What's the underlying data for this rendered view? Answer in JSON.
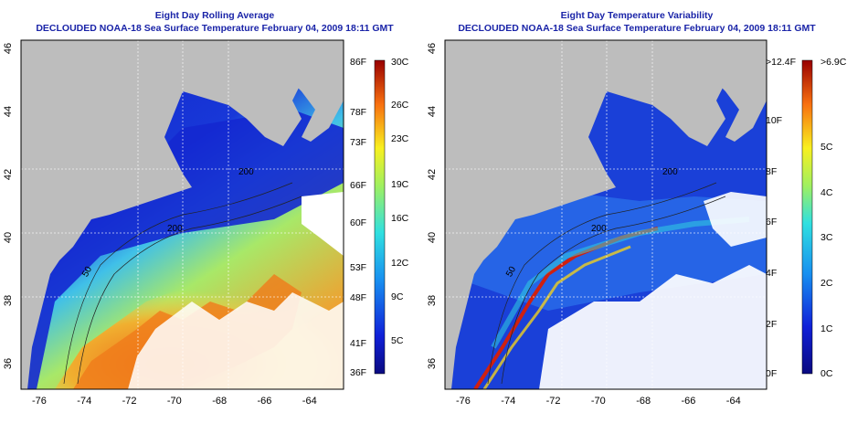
{
  "left": {
    "title": "Eight Day Rolling Average",
    "subtitle": "DECLOUDED NOAA-18 Sea Surface Temperature February 04, 2009 18:11 GMT",
    "lon_ticks": [
      "-76",
      "-74",
      "-72",
      "-70",
      "-68",
      "-66",
      "-64"
    ],
    "lat_ticks": [
      "36",
      "38",
      "40",
      "42",
      "44",
      "46"
    ],
    "contour_labels": [
      "200",
      "50",
      "200"
    ],
    "colorbar": {
      "left_labels": [
        "86F",
        "78F",
        "73F",
        "66F",
        "60F",
        "53F",
        "48F",
        "41F",
        "36F"
      ],
      "right_labels": [
        "30C",
        "26C",
        "23C",
        "19C",
        "16C",
        "12C",
        "9C",
        "5C"
      ]
    }
  },
  "right": {
    "title": "Eight Day Temperature Variability",
    "subtitle": "DECLOUDED NOAA-18 Sea Surface Temperature February 04, 2009 18:11 GMT",
    "lon_ticks": [
      "-76",
      "-74",
      "-72",
      "-70",
      "-68",
      "-66",
      "-64"
    ],
    "lat_ticks": [
      "36",
      "38",
      "40",
      "42",
      "44",
      "46"
    ],
    "contour_labels": [
      "200",
      "50",
      "200"
    ],
    "colorbar": {
      "left_labels": [
        ">12.4F",
        "10F",
        "8F",
        "6F",
        "4F",
        "2F",
        "0F"
      ],
      "right_labels": [
        ">6.9C",
        "5C",
        "4C",
        "3C",
        "2C",
        "1C",
        "0C"
      ]
    }
  },
  "colors": {
    "land": "#bdbdbd",
    "title": "#1a24a8",
    "cold": "#1a1fc8",
    "warm": "#e8501a"
  }
}
